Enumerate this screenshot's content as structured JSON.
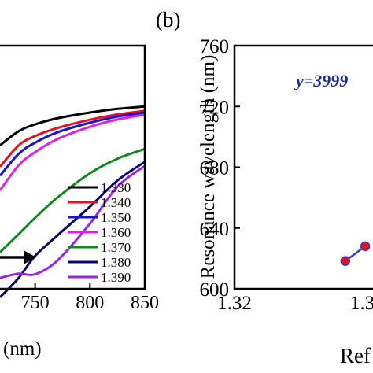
{
  "panel_b_label": "(b)",
  "chart_data": [
    {
      "type": "line",
      "xlabel": "(nm)",
      "xlim": [
        718,
        850
      ],
      "x_ticks": [
        750,
        800,
        850
      ],
      "legend_placement": "bottom-right",
      "arrow_direction": "right",
      "series": [
        {
          "name": "1.330",
          "color": "#000000",
          "x": [
            718,
            735,
            750,
            770,
            800,
            825,
            850
          ],
          "y": [
            0.59,
            0.648,
            0.676,
            0.701,
            0.725,
            0.74,
            0.75
          ]
        },
        {
          "name": "1.340",
          "color": "#e8101a",
          "x": [
            718,
            735,
            750,
            770,
            800,
            825,
            850
          ],
          "y": [
            0.502,
            0.59,
            0.628,
            0.661,
            0.695,
            0.717,
            0.732
          ]
        },
        {
          "name": "1.350",
          "color": "#1414d8",
          "x": [
            718,
            735,
            750,
            770,
            800,
            825,
            850
          ],
          "y": [
            0.465,
            0.555,
            0.601,
            0.643,
            0.683,
            0.708,
            0.725
          ]
        },
        {
          "name": "1.360",
          "color": "#e020e0",
          "x": [
            718,
            735,
            750,
            770,
            800,
            825,
            850
          ],
          "y": [
            0.405,
            0.508,
            0.562,
            0.615,
            0.666,
            0.696,
            0.716
          ]
        },
        {
          "name": "1.370",
          "color": "#0e8a1c",
          "x": [
            718,
            735,
            750,
            770,
            800,
            825,
            850
          ],
          "y": [
            0.15,
            0.225,
            0.292,
            0.374,
            0.475,
            0.535,
            0.575
          ]
        },
        {
          "name": "1.380",
          "color": "#0a0a6e",
          "x": [
            718,
            735,
            750,
            770,
            800,
            825,
            850
          ],
          "y": [
            -0.035,
            0.045,
            0.135,
            0.218,
            0.338,
            0.445,
            0.522
          ]
        },
        {
          "name": "1.390",
          "color": "#9b22ee",
          "x": [
            718,
            735,
            750,
            770,
            800,
            825,
            850
          ],
          "y": [
            0.045,
            0.062,
            0.06,
            0.115,
            0.268,
            0.42,
            0.505
          ]
        }
      ]
    },
    {
      "type": "scatter",
      "ylabel": "Resonance wavelength (nm)",
      "xlabel": "Ref",
      "xlim": [
        1.32,
        1.3325
      ],
      "ylim": [
        600,
        760
      ],
      "x_tick_labels": [
        "1.32",
        "1.3"
      ],
      "y_ticks": [
        600,
        640,
        680,
        720,
        760
      ],
      "annotation": "y=3999",
      "points": [
        {
          "x": 1.33,
          "y": 618.3
        },
        {
          "x": 1.3318,
          "y": 628.0
        }
      ]
    }
  ]
}
